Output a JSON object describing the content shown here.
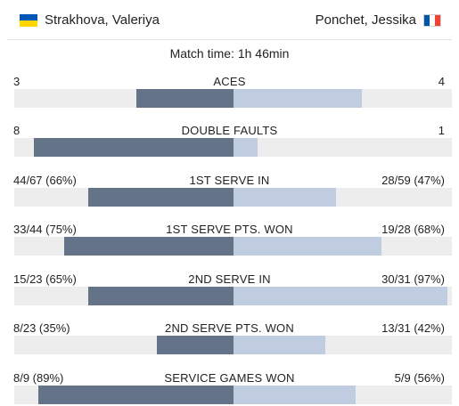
{
  "home": {
    "name": "Strakhova, Valeriya",
    "flag": "ua-flag-icon"
  },
  "away": {
    "name": "Ponchet, Jessika",
    "flag": "fr-flag-icon"
  },
  "match_time": "Match time: 1h 46min",
  "colors": {
    "home_bar": "#647387",
    "away_bar": "#c0cce0",
    "track": "#ededed"
  },
  "stats": [
    {
      "label": "ACES",
      "home": "3",
      "away": "4",
      "home_frac": 0.44,
      "away_frac": 0.59
    },
    {
      "label": "DOUBLE FAULTS",
      "home": "8",
      "away": "1",
      "home_frac": 0.91,
      "away_frac": 0.11
    },
    {
      "label": "1ST SERVE IN",
      "home": "44/67 (66%)",
      "away": "28/59 (47%)",
      "home_frac": 0.66,
      "away_frac": 0.47
    },
    {
      "label": "1ST SERVE PTS. WON",
      "home": "33/44 (75%)",
      "away": "19/28 (68%)",
      "home_frac": 0.77,
      "away_frac": 0.68
    },
    {
      "label": "2ND SERVE IN",
      "home": "15/23 (65%)",
      "away": "30/31 (97%)",
      "home_frac": 0.66,
      "away_frac": 0.98
    },
    {
      "label": "2ND SERVE PTS. WON",
      "home": "8/23 (35%)",
      "away": "13/31 (42%)",
      "home_frac": 0.35,
      "away_frac": 0.42
    },
    {
      "label": "SERVICE GAMES WON",
      "home": "8/9 (89%)",
      "away": "5/9 (56%)",
      "home_frac": 0.89,
      "away_frac": 0.56
    }
  ]
}
